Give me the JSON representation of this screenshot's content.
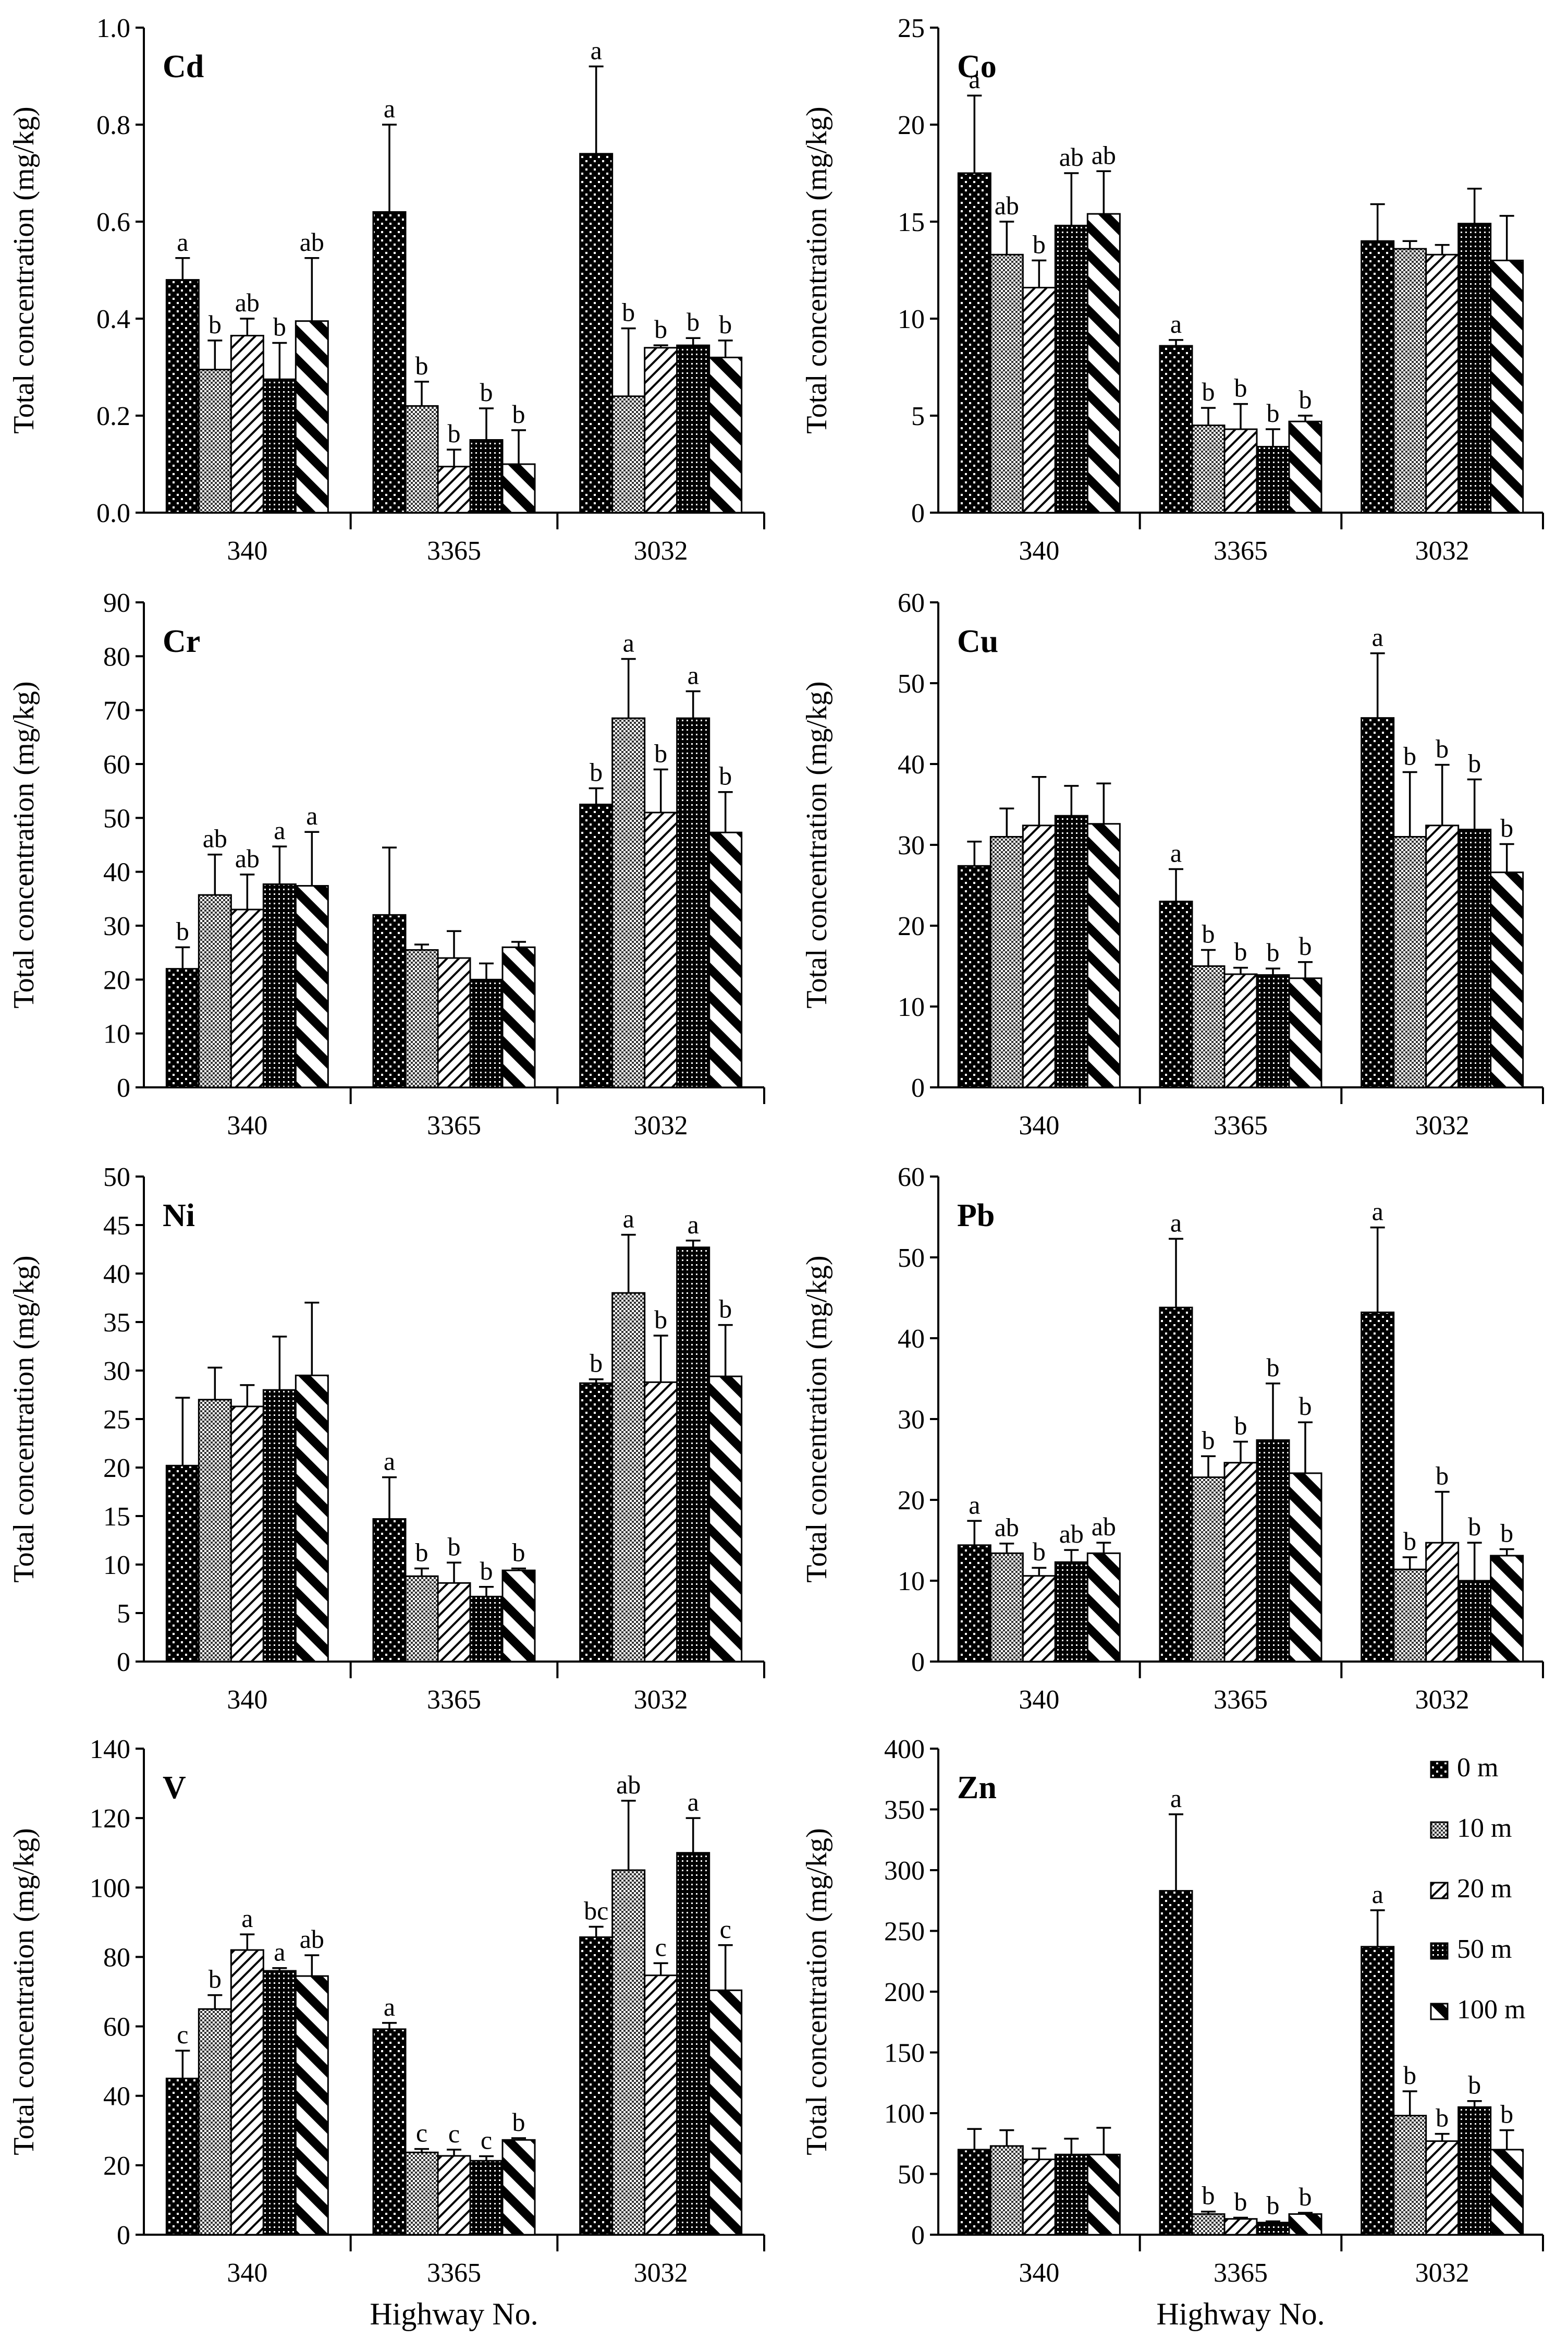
{
  "legend": {
    "items": [
      {
        "label": "0 m",
        "pattern": "dots"
      },
      {
        "label": "10 m",
        "pattern": "grid"
      },
      {
        "label": "20 m",
        "pattern": "diag-light"
      },
      {
        "label": "50 m",
        "pattern": "checker"
      },
      {
        "label": "100 m",
        "pattern": "diag-heavy"
      }
    ]
  },
  "xlabel": "Highway No.",
  "chart_data": [
    {
      "type": "bar",
      "title": "Cd",
      "ylabel": "Total concentration (mg/kg)",
      "categories": [
        "340",
        "3365",
        "3032"
      ],
      "ylim": [
        0,
        1.0
      ],
      "yticks": [
        "0.0",
        "0.2",
        "0.4",
        "0.6",
        "0.8",
        "1.0"
      ],
      "ytick_values": [
        0,
        0.2,
        0.4,
        0.6,
        0.8,
        1.0
      ],
      "series": [
        {
          "name": "0 m",
          "values": [
            0.48,
            0.62,
            0.74
          ],
          "errors": [
            0.045,
            0.18,
            0.18
          ],
          "labels": [
            "a",
            "a",
            "a"
          ]
        },
        {
          "name": "10 m",
          "values": [
            0.295,
            0.22,
            0.24
          ],
          "errors": [
            0.06,
            0.05,
            0.14
          ],
          "labels": [
            "b",
            "b",
            "b"
          ]
        },
        {
          "name": "20 m",
          "values": [
            0.365,
            0.095,
            0.34
          ],
          "errors": [
            0.035,
            0.035,
            0.005
          ],
          "labels": [
            "ab",
            "b",
            "b"
          ]
        },
        {
          "name": "50 m",
          "values": [
            0.275,
            0.15,
            0.345
          ],
          "errors": [
            0.075,
            0.065,
            0.015
          ],
          "labels": [
            "b",
            "b",
            "b"
          ]
        },
        {
          "name": "100 m",
          "values": [
            0.395,
            0.1,
            0.32
          ],
          "errors": [
            0.13,
            0.07,
            0.035
          ],
          "labels": [
            "ab",
            "b",
            "b"
          ]
        }
      ]
    },
    {
      "type": "bar",
      "title": "Co",
      "ylabel": "Total concentration (mg/kg)",
      "categories": [
        "340",
        "3365",
        "3032"
      ],
      "ylim": [
        0,
        25
      ],
      "yticks": [
        "0",
        "5",
        "10",
        "15",
        "20",
        "25"
      ],
      "ytick_values": [
        0,
        5,
        10,
        15,
        20,
        25
      ],
      "series": [
        {
          "name": "0 m",
          "values": [
            17.5,
            8.6,
            14.0
          ],
          "errors": [
            4.0,
            0.3,
            1.9
          ],
          "labels": [
            "a",
            "a",
            ""
          ]
        },
        {
          "name": "10 m",
          "values": [
            13.3,
            4.5,
            13.6
          ],
          "errors": [
            1.7,
            0.9,
            0.4
          ],
          "labels": [
            "ab",
            "b",
            ""
          ]
        },
        {
          "name": "20 m",
          "values": [
            11.6,
            4.3,
            13.3
          ],
          "errors": [
            1.4,
            1.3,
            0.5
          ],
          "labels": [
            "b",
            "b",
            ""
          ]
        },
        {
          "name": "50 m",
          "values": [
            14.8,
            3.4,
            14.9
          ],
          "errors": [
            2.7,
            0.9,
            1.8
          ],
          "labels": [
            "ab",
            "b",
            ""
          ]
        },
        {
          "name": "100 m",
          "values": [
            15.4,
            4.7,
            13.0
          ],
          "errors": [
            2.2,
            0.3,
            2.3
          ],
          "labels": [
            "ab",
            "b",
            ""
          ]
        }
      ]
    },
    {
      "type": "bar",
      "title": "Cr",
      "ylabel": "Total concentration (mg/kg)",
      "categories": [
        "340",
        "3365",
        "3032"
      ],
      "ylim": [
        0,
        90
      ],
      "yticks": [
        "0",
        "10",
        "20",
        "30",
        "40",
        "50",
        "60",
        "70",
        "80",
        "90"
      ],
      "ytick_values": [
        0,
        10,
        20,
        30,
        40,
        50,
        60,
        70,
        80,
        90
      ],
      "series": [
        {
          "name": "0 m",
          "values": [
            22.0,
            32.0,
            52.5
          ],
          "errors": [
            4.0,
            12.5,
            3.0
          ],
          "labels": [
            "b",
            "",
            "b"
          ]
        },
        {
          "name": "10 m",
          "values": [
            35.7,
            25.5,
            68.5
          ],
          "errors": [
            7.5,
            1.0,
            11.0
          ],
          "labels": [
            "ab",
            "",
            "a"
          ]
        },
        {
          "name": "20 m",
          "values": [
            33.0,
            24.0,
            51.0
          ],
          "errors": [
            6.5,
            5.0,
            8.0
          ],
          "labels": [
            "ab",
            "",
            "b"
          ]
        },
        {
          "name": "50 m",
          "values": [
            37.7,
            20.0,
            68.5
          ],
          "errors": [
            7.0,
            3.0,
            5.0
          ],
          "labels": [
            "a",
            "",
            "a"
          ]
        },
        {
          "name": "100 m",
          "values": [
            37.4,
            26.0,
            47.3
          ],
          "errors": [
            10.0,
            1.0,
            7.5
          ],
          "labels": [
            "a",
            "",
            "b"
          ]
        }
      ]
    },
    {
      "type": "bar",
      "title": "Cu",
      "ylabel": "Total concentration (mg/kg)",
      "categories": [
        "340",
        "3365",
        "3032"
      ],
      "ylim": [
        0,
        60
      ],
      "yticks": [
        "0",
        "10",
        "20",
        "30",
        "40",
        "50",
        "60"
      ],
      "ytick_values": [
        0,
        10,
        20,
        30,
        40,
        50,
        60
      ],
      "series": [
        {
          "name": "0 m",
          "values": [
            27.4,
            23.0,
            45.7
          ],
          "errors": [
            3.0,
            4.0,
            8.0
          ],
          "labels": [
            "",
            "a",
            "a"
          ]
        },
        {
          "name": "10 m",
          "values": [
            31.0,
            15.0,
            31.0
          ],
          "errors": [
            3.5,
            2.0,
            8.0
          ],
          "labels": [
            "",
            "b",
            "b"
          ]
        },
        {
          "name": "20 m",
          "values": [
            32.4,
            14.0,
            32.4
          ],
          "errors": [
            6.0,
            0.8,
            7.5
          ],
          "labels": [
            "",
            "b",
            "b"
          ]
        },
        {
          "name": "50 m",
          "values": [
            33.6,
            13.9,
            31.9
          ],
          "errors": [
            3.7,
            0.8,
            6.2
          ],
          "labels": [
            "",
            "b",
            "b"
          ]
        },
        {
          "name": "100 m",
          "values": [
            32.6,
            13.5,
            26.6
          ],
          "errors": [
            5.0,
            2.0,
            3.5
          ],
          "labels": [
            "",
            "b",
            "b"
          ]
        }
      ]
    },
    {
      "type": "bar",
      "title": "Ni",
      "ylabel": "Total concentration (mg/kg)",
      "categories": [
        "340",
        "3365",
        "3032"
      ],
      "ylim": [
        0,
        50
      ],
      "yticks": [
        "0",
        "5",
        "10",
        "15",
        "20",
        "25",
        "30",
        "35",
        "40",
        "45",
        "50"
      ],
      "ytick_values": [
        0,
        5,
        10,
        15,
        20,
        25,
        30,
        35,
        40,
        45,
        50
      ],
      "series": [
        {
          "name": "0 m",
          "values": [
            20.2,
            14.7,
            28.7
          ],
          "errors": [
            7.0,
            4.3,
            0.4
          ],
          "labels": [
            "",
            "a",
            "b"
          ]
        },
        {
          "name": "10 m",
          "values": [
            27.0,
            8.8,
            38.0
          ],
          "errors": [
            3.3,
            0.8,
            6.0
          ],
          "labels": [
            "",
            "b",
            "a"
          ]
        },
        {
          "name": "20 m",
          "values": [
            26.3,
            8.1,
            28.8
          ],
          "errors": [
            2.2,
            2.1,
            4.8
          ],
          "labels": [
            "",
            "b",
            "b"
          ]
        },
        {
          "name": "50 m",
          "values": [
            28.0,
            6.7,
            42.7
          ],
          "errors": [
            5.5,
            1.0,
            0.7
          ],
          "labels": [
            "",
            "b",
            "a"
          ]
        },
        {
          "name": "100 m",
          "values": [
            29.5,
            9.4,
            29.4
          ],
          "errors": [
            7.5,
            0.2,
            5.3
          ],
          "labels": [
            "",
            "b",
            "b"
          ]
        }
      ]
    },
    {
      "type": "bar",
      "title": "Pb",
      "ylabel": "Total concentration (mg/kg)",
      "categories": [
        "340",
        "3365",
        "3032"
      ],
      "ylim": [
        0,
        60
      ],
      "yticks": [
        "0",
        "10",
        "20",
        "30",
        "40",
        "50",
        "60"
      ],
      "ytick_values": [
        0,
        10,
        20,
        30,
        40,
        50,
        60
      ],
      "series": [
        {
          "name": "0 m",
          "values": [
            14.4,
            43.8,
            43.2
          ],
          "errors": [
            3.0,
            8.5,
            10.5
          ],
          "labels": [
            "a",
            "a",
            "a"
          ]
        },
        {
          "name": "10 m",
          "values": [
            13.4,
            22.8,
            11.4
          ],
          "errors": [
            1.2,
            2.6,
            1.5
          ],
          "labels": [
            "ab",
            "b",
            "b"
          ]
        },
        {
          "name": "20 m",
          "values": [
            10.6,
            24.6,
            14.7
          ],
          "errors": [
            1.0,
            2.6,
            6.3
          ],
          "labels": [
            "b",
            "b",
            "b"
          ]
        },
        {
          "name": "50 m",
          "values": [
            12.3,
            27.4,
            10.0
          ],
          "errors": [
            1.5,
            7.0,
            4.7
          ],
          "labels": [
            "ab",
            "b",
            "b"
          ]
        },
        {
          "name": "100 m",
          "values": [
            13.4,
            23.3,
            13.1
          ],
          "errors": [
            1.3,
            6.3,
            0.8
          ],
          "labels": [
            "ab",
            "b",
            "b"
          ]
        }
      ]
    },
    {
      "type": "bar",
      "title": "V",
      "ylabel": "Total concentration (mg/kg)",
      "categories": [
        "340",
        "3365",
        "3032"
      ],
      "ylim": [
        0,
        140
      ],
      "yticks": [
        "0",
        "20",
        "40",
        "60",
        "80",
        "100",
        "120",
        "140"
      ],
      "ytick_values": [
        0,
        20,
        40,
        60,
        80,
        100,
        120,
        140
      ],
      "series": [
        {
          "name": "0 m",
          "values": [
            45.0,
            59.2,
            85.7
          ],
          "errors": [
            8.0,
            1.8,
            3.0
          ],
          "labels": [
            "c",
            "a",
            "bc"
          ]
        },
        {
          "name": "10 m",
          "values": [
            65.0,
            23.7,
            105.0
          ],
          "errors": [
            4.0,
            1.0,
            20.0
          ],
          "labels": [
            "b",
            "c",
            "ab"
          ]
        },
        {
          "name": "20 m",
          "values": [
            82.0,
            22.7,
            74.7
          ],
          "errors": [
            4.5,
            1.8,
            3.5
          ],
          "labels": [
            "a",
            "c",
            "c"
          ]
        },
        {
          "name": "50 m",
          "values": [
            76.0,
            21.3,
            110.0
          ],
          "errors": [
            0.8,
            1.3,
            10.0
          ],
          "labels": [
            "a",
            "c",
            "a"
          ]
        },
        {
          "name": "100 m",
          "values": [
            74.5,
            27.3,
            70.4
          ],
          "errors": [
            6.0,
            0.5,
            13.0
          ],
          "labels": [
            "ab",
            "b",
            "c"
          ]
        }
      ]
    },
    {
      "type": "bar",
      "title": "Zn",
      "ylabel": "Total concentration (mg/kg)",
      "categories": [
        "340",
        "3365",
        "3032"
      ],
      "ylim": [
        0,
        400
      ],
      "yticks": [
        "0",
        "50",
        "100",
        "150",
        "200",
        "250",
        "300",
        "350",
        "400"
      ],
      "ytick_values": [
        0,
        50,
        100,
        150,
        200,
        250,
        300,
        350,
        400
      ],
      "series": [
        {
          "name": "0 m",
          "values": [
            70.0,
            283.0,
            237.0
          ],
          "errors": [
            17.0,
            63.0,
            30.0
          ],
          "labels": [
            "",
            "a",
            "a"
          ]
        },
        {
          "name": "10 m",
          "values": [
            73.0,
            17.0,
            98.0
          ],
          "errors": [
            13.0,
            2.0,
            20.0
          ],
          "labels": [
            "",
            "b",
            "b"
          ]
        },
        {
          "name": "20 m",
          "values": [
            62.0,
            13.0,
            77.0
          ],
          "errors": [
            9.0,
            1.0,
            6.0
          ],
          "labels": [
            "",
            "b",
            "b"
          ]
        },
        {
          "name": "50 m",
          "values": [
            66.0,
            10.0,
            105.0
          ],
          "errors": [
            13.0,
            1.0,
            5.0
          ],
          "labels": [
            "",
            "b",
            "b"
          ]
        },
        {
          "name": "100 m",
          "values": [
            66.0,
            17.0,
            70.0
          ],
          "errors": [
            22.0,
            1.0,
            16.0
          ],
          "labels": [
            "",
            "b",
            "b"
          ]
        }
      ]
    }
  ]
}
